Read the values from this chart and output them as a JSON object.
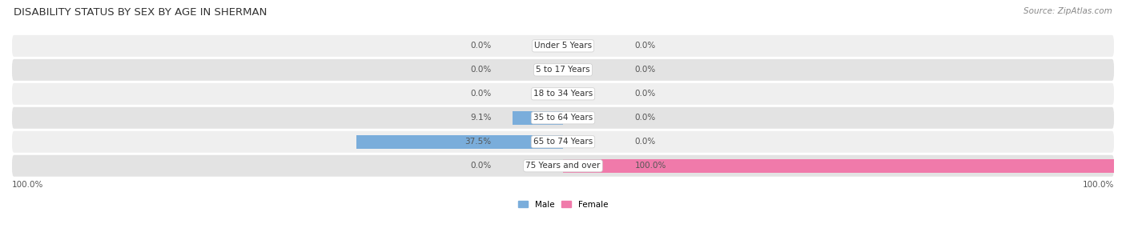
{
  "title": "DISABILITY STATUS BY SEX BY AGE IN SHERMAN",
  "source": "Source: ZipAtlas.com",
  "categories": [
    "Under 5 Years",
    "5 to 17 Years",
    "18 to 34 Years",
    "35 to 64 Years",
    "65 to 74 Years",
    "75 Years and over"
  ],
  "male_values": [
    0.0,
    0.0,
    0.0,
    9.1,
    37.5,
    0.0
  ],
  "female_values": [
    0.0,
    0.0,
    0.0,
    0.0,
    0.0,
    100.0
  ],
  "male_color": "#7aaddb",
  "female_color": "#f07aaa",
  "male_label": "Male",
  "female_label": "Female",
  "bar_height": 0.58,
  "row_bg_light": "#efefef",
  "row_bg_dark": "#e3e3e3",
  "title_fontsize": 9.5,
  "label_fontsize": 7.5,
  "source_fontsize": 7.5,
  "category_fontsize": 7.5
}
